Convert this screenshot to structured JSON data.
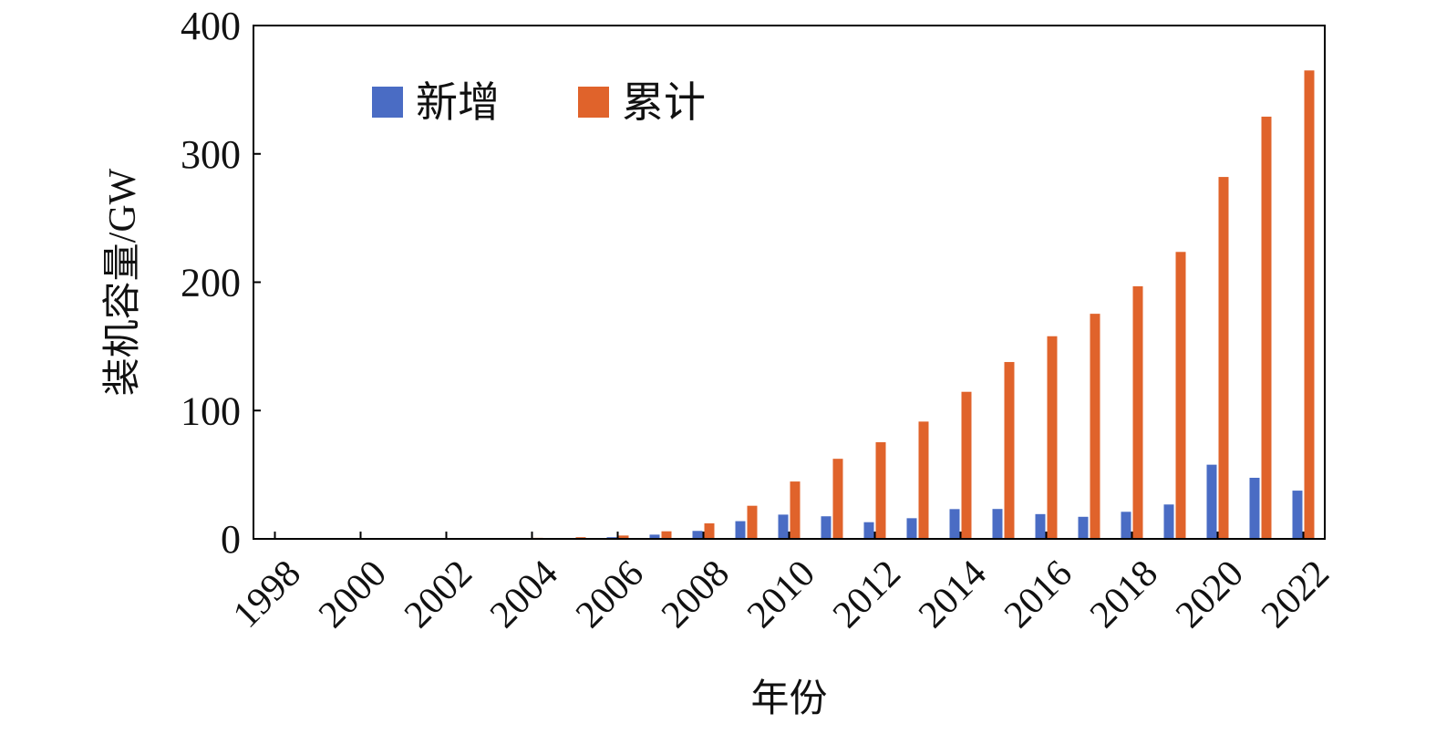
{
  "chart_data": {
    "type": "bar",
    "title": "",
    "xlabel": "年份",
    "ylabel": "装机容量/GW",
    "ylim": [
      0,
      400
    ],
    "yticks": [
      "0",
      "100",
      "200",
      "300",
      "400"
    ],
    "grid": false,
    "legend_position": "top-left",
    "categories": [
      "1998",
      "1999",
      "2000",
      "2001",
      "2002",
      "2003",
      "2004",
      "2005",
      "2006",
      "2007",
      "2008",
      "2009",
      "2010",
      "2011",
      "2012",
      "2013",
      "2014",
      "2015",
      "2016",
      "2017",
      "2018",
      "2019",
      "2020",
      "2021",
      "2022"
    ],
    "xtick_labels": [
      "1998",
      "2000",
      "2002",
      "2004",
      "2006",
      "2008",
      "2010",
      "2012",
      "2014",
      "2016",
      "2018",
      "2020",
      "2022"
    ],
    "series": [
      {
        "name": "新增",
        "color": "#4A6CC4",
        "values": [
          0.0,
          0.1,
          0.1,
          0.1,
          0.1,
          0.1,
          0.2,
          0.5,
          1.3,
          3.3,
          6.2,
          13.8,
          18.9,
          17.6,
          13.0,
          16.1,
          23.2,
          23.3,
          19.3,
          17.2,
          21.1,
          26.8,
          57.8,
          47.6,
          37.6
        ]
      },
      {
        "name": "累计",
        "color": "#E0632B",
        "values": [
          0.2,
          0.3,
          0.3,
          0.4,
          0.5,
          0.6,
          0.8,
          1.3,
          2.6,
          5.9,
          12.1,
          25.8,
          44.7,
          62.4,
          75.3,
          91.4,
          114.6,
          137.8,
          157.9,
          175.4,
          196.8,
          223.6,
          282.0,
          329.0,
          365.0
        ]
      }
    ]
  }
}
